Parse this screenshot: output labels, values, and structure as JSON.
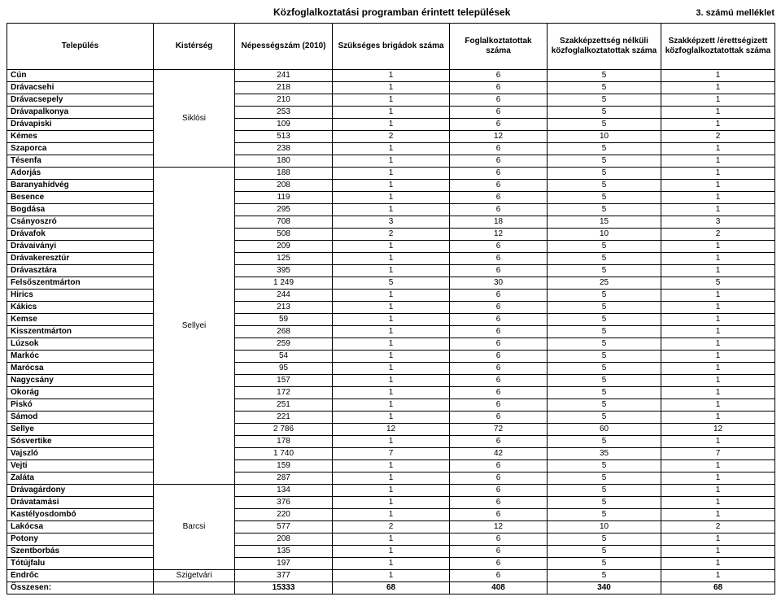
{
  "title": "Közfoglalkoztatási programban érintett települések",
  "annex": "3. számú melléklet",
  "columns": [
    "Település",
    "Kistérség",
    "Népességszám (2010)",
    "Szükséges brigádok száma",
    "Foglalkoztatottak száma",
    "Szakképzettség nélküli közfoglalkoztatottak száma",
    "Szakképzett /érettségizett közfoglalkoztatottak száma"
  ],
  "groups": [
    {
      "kister": "Siklósi",
      "rows": [
        [
          "Cún",
          241,
          1,
          6,
          5,
          1
        ],
        [
          "Drávacsehi",
          218,
          1,
          6,
          5,
          1
        ],
        [
          "Drávacsepely",
          210,
          1,
          6,
          5,
          1
        ],
        [
          "Drávapalkonya",
          253,
          1,
          6,
          5,
          1
        ],
        [
          "Drávapiski",
          109,
          1,
          6,
          5,
          1
        ],
        [
          "Kémes",
          513,
          2,
          12,
          10,
          2
        ],
        [
          "Szaporca",
          238,
          1,
          6,
          5,
          1
        ],
        [
          "Tésenfa",
          180,
          1,
          6,
          5,
          1
        ]
      ]
    },
    {
      "kister": "Sellyei",
      "rows": [
        [
          "Adorjás",
          188,
          1,
          6,
          5,
          1
        ],
        [
          "Baranyahídvég",
          208,
          1,
          6,
          5,
          1
        ],
        [
          "Besence",
          119,
          1,
          6,
          5,
          1
        ],
        [
          "Bogdása",
          295,
          1,
          6,
          5,
          1
        ],
        [
          "Csányoszró",
          708,
          3,
          18,
          15,
          3
        ],
        [
          "Drávafok",
          508,
          2,
          12,
          10,
          2
        ],
        [
          "Drávaiványi",
          209,
          1,
          6,
          5,
          1
        ],
        [
          "Drávakeresztúr",
          125,
          1,
          6,
          5,
          1
        ],
        [
          "Drávasztára",
          395,
          1,
          6,
          5,
          1
        ],
        [
          "Felsőszentmárton",
          "1 249",
          5,
          30,
          25,
          5
        ],
        [
          "Hirics",
          244,
          1,
          6,
          5,
          1
        ],
        [
          "Kákics",
          213,
          1,
          6,
          5,
          1
        ],
        [
          "Kemse",
          59,
          1,
          6,
          5,
          1
        ],
        [
          "Kisszentmárton",
          268,
          1,
          6,
          5,
          1
        ],
        [
          "Lúzsok",
          259,
          1,
          6,
          5,
          1
        ],
        [
          "Markóc",
          54,
          1,
          6,
          5,
          1
        ],
        [
          "Marócsa",
          95,
          1,
          6,
          5,
          1
        ],
        [
          "Nagycsány",
          157,
          1,
          6,
          5,
          1
        ],
        [
          "Okorág",
          172,
          1,
          6,
          5,
          1
        ],
        [
          "Piskó",
          251,
          1,
          6,
          5,
          1
        ],
        [
          "Sámod",
          221,
          1,
          6,
          5,
          1
        ],
        [
          "Sellye",
          "2 786",
          12,
          72,
          60,
          12
        ],
        [
          "Sósvertike",
          178,
          1,
          6,
          5,
          1
        ],
        [
          "Vajszló",
          "1 740",
          7,
          42,
          35,
          7
        ],
        [
          "Vejti",
          159,
          1,
          6,
          5,
          1
        ],
        [
          "Zaláta",
          287,
          1,
          6,
          5,
          1
        ]
      ]
    },
    {
      "kister": "Barcsi",
      "rows": [
        [
          "Drávagárdony",
          134,
          1,
          6,
          5,
          1
        ],
        [
          "Drávatamási",
          376,
          1,
          6,
          5,
          1
        ],
        [
          "Kastélyosdombó",
          220,
          1,
          6,
          5,
          1
        ],
        [
          "Lakócsa",
          577,
          2,
          12,
          10,
          2
        ],
        [
          "Potony",
          208,
          1,
          6,
          5,
          1
        ],
        [
          "Szentborbás",
          135,
          1,
          6,
          5,
          1
        ],
        [
          "Tótújfalu",
          197,
          1,
          6,
          5,
          1
        ]
      ]
    },
    {
      "kister": "Szigetvári",
      "rows": [
        [
          "Endrőc",
          377,
          1,
          6,
          5,
          1
        ]
      ]
    }
  ],
  "total": {
    "label": "Összesen:",
    "values": [
      15333,
      68,
      408,
      340,
      68
    ]
  }
}
